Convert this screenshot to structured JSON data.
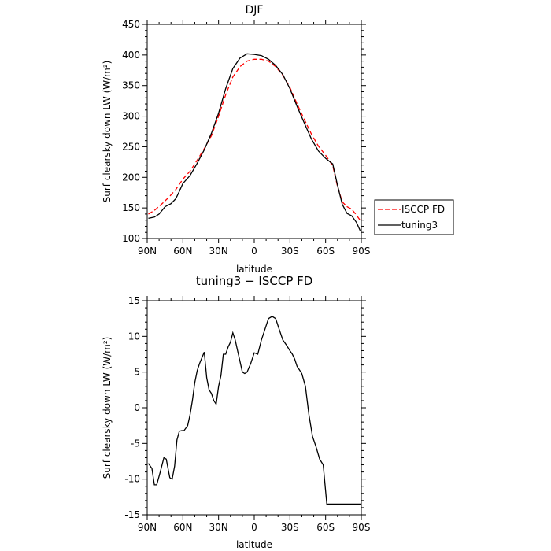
{
  "chart_data": [
    {
      "type": "line",
      "title": "DJF",
      "xlabel": "latitude",
      "ylabel": "Surf clearsky down LW (W/m²)",
      "xlim": [
        90,
        -90
      ],
      "ylim": [
        100,
        450
      ],
      "x_ticks": [
        {
          "value": 90,
          "label": "90N"
        },
        {
          "value": 60,
          "label": "60N"
        },
        {
          "value": 30,
          "label": "30N"
        },
        {
          "value": 0,
          "label": "0"
        },
        {
          "value": -30,
          "label": "30S"
        },
        {
          "value": -60,
          "label": "60S"
        },
        {
          "value": -90,
          "label": "90S"
        }
      ],
      "y_ticks": [
        100,
        150,
        200,
        250,
        300,
        350,
        400,
        450
      ],
      "legend": "right",
      "series": [
        {
          "name": "ISCCP FD",
          "color": "#ff0000",
          "dash": "dashed",
          "x": [
            89,
            84,
            78,
            72,
            66,
            60,
            54,
            48,
            42,
            36,
            30,
            24,
            18,
            12,
            6,
            0,
            -6,
            -12,
            -18,
            -24,
            -30,
            -36,
            -42,
            -48,
            -54,
            -60,
            -66,
            -70,
            -74,
            -78,
            -82,
            -86,
            -89
          ],
          "y": [
            140,
            146,
            156,
            167,
            180,
            197,
            210,
            228,
            247,
            268,
            300,
            335,
            364,
            381,
            390,
            393,
            393,
            390,
            381,
            367,
            347,
            320,
            295,
            271,
            251,
            236,
            219,
            185,
            160,
            152,
            148,
            138,
            130
          ]
        },
        {
          "name": "tuning3",
          "color": "#000000",
          "dash": "solid",
          "x": [
            89,
            84,
            80,
            75,
            70,
            66,
            63,
            60,
            54,
            48,
            42,
            36,
            30,
            24,
            18,
            12,
            6,
            0,
            -6,
            -12,
            -18,
            -24,
            -30,
            -36,
            -42,
            -48,
            -54,
            -60,
            -66,
            -70,
            -74,
            -78,
            -82,
            -86,
            -89
          ],
          "y": [
            133,
            135,
            140,
            152,
            157,
            165,
            177,
            190,
            203,
            223,
            245,
            272,
            305,
            345,
            378,
            395,
            402,
            401,
            399,
            393,
            383,
            368,
            345,
            316,
            289,
            263,
            243,
            231,
            222,
            187,
            156,
            141,
            137,
            126,
            113
          ]
        }
      ]
    },
    {
      "type": "line",
      "title": "tuning3 − ISCCP FD",
      "xlabel": "latitude",
      "ylabel": "Surf clearsky down LW (W/m²)",
      "xlim": [
        90,
        -90
      ],
      "ylim": [
        -15,
        15
      ],
      "x_ticks": [
        {
          "value": 90,
          "label": "90N"
        },
        {
          "value": 60,
          "label": "60N"
        },
        {
          "value": 30,
          "label": "30N"
        },
        {
          "value": 0,
          "label": "0"
        },
        {
          "value": -30,
          "label": "30S"
        },
        {
          "value": -60,
          "label": "60S"
        },
        {
          "value": -90,
          "label": "90S"
        }
      ],
      "y_ticks": [
        -15,
        -10,
        -5,
        0,
        5,
        10,
        15
      ],
      "series": [
        {
          "color": "#000000",
          "dash": "solid",
          "x": [
            89,
            86,
            84,
            82,
            79,
            76,
            74,
            71,
            69,
            67,
            65,
            63,
            61,
            59,
            56,
            54,
            52,
            50,
            48,
            46,
            44,
            42,
            40,
            38,
            36,
            34,
            32,
            30,
            28,
            26,
            24,
            22,
            20,
            18,
            16,
            14,
            12,
            10,
            8,
            6,
            3,
            0,
            -3,
            -6,
            -9,
            -12,
            -15,
            -18,
            -21,
            -24,
            -27,
            -30,
            -32,
            -34,
            -36,
            -38,
            -40,
            -43,
            -46,
            -49,
            -52,
            -55,
            -58,
            -61,
            -64,
            -67,
            -70,
            -73,
            -76,
            -79,
            -82,
            -85,
            -88,
            -90
          ],
          "y": [
            -7.8,
            -8.5,
            -10.8,
            -10.8,
            -9.0,
            -7.0,
            -7.2,
            -9.8,
            -10.0,
            -8.2,
            -4.5,
            -3.3,
            -3.2,
            -3.2,
            -2.5,
            -1.0,
            1.0,
            3.5,
            5.2,
            6.2,
            7.0,
            7.8,
            4.2,
            2.5,
            2.0,
            1.0,
            0.5,
            3.0,
            4.5,
            7.5,
            7.5,
            8.5,
            9.2,
            10.5,
            9.5,
            8.0,
            6.5,
            5.0,
            4.8,
            5.0,
            6.2,
            7.7,
            7.5,
            9.5,
            11.0,
            12.5,
            12.8,
            12.5,
            11.0,
            9.5,
            8.8,
            8.0,
            7.5,
            6.8,
            5.8,
            5.3,
            4.8,
            3.0,
            -1.0,
            -4.0,
            -5.5,
            -7.2,
            -8.0,
            -13.5,
            -13.5,
            -13.5,
            -13.5,
            -13.5,
            -13.5,
            -13.5,
            -13.5,
            -13.5,
            -13.5,
            -13.5
          ]
        }
      ]
    }
  ]
}
